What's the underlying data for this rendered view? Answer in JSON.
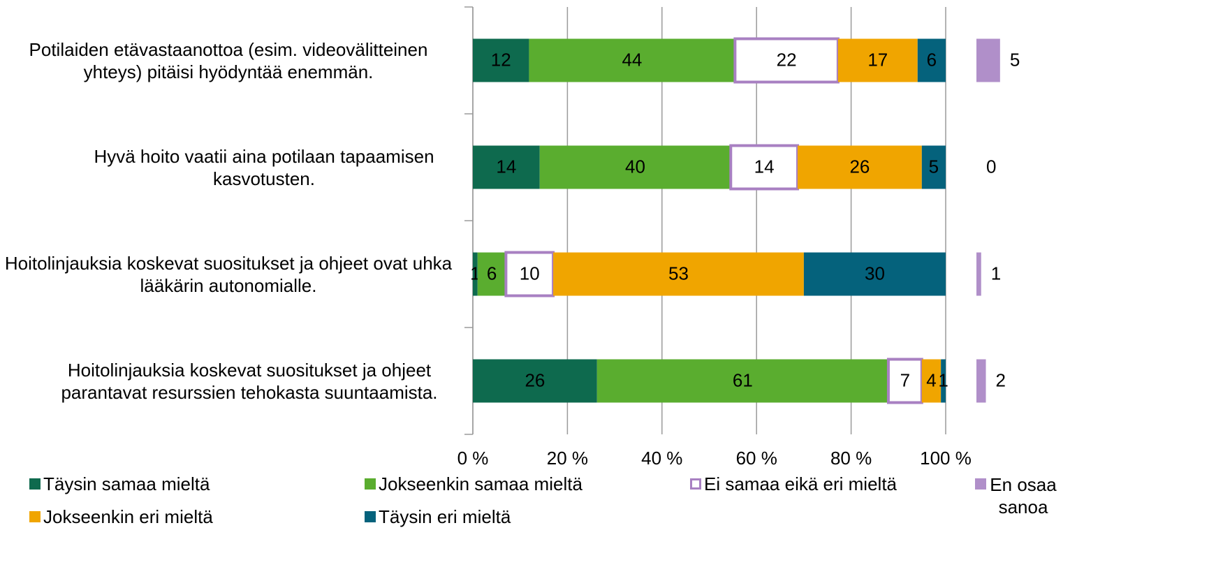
{
  "chart_data": {
    "type": "bar",
    "orientation": "horizontal",
    "stacked": "percent",
    "grid": true,
    "categories": [
      "Potilaiden etävastaanottoa (esim. videovälitteinen yhteys) pitäisi hyödyntää enemmän.",
      "Hyvä hoito vaatii aina potilaan tapaamisen kasvotusten.",
      "Hoitolinjauksia koskevat suositukset ja ohjeet ovat uhka lääkärin autonomialle.",
      "Hoitolinjauksia koskevat suositukset ja ohjeet parantavat resurssien tehokasta suuntaamista."
    ],
    "series": [
      {
        "name": "Täysin samaa mieltä",
        "color": "#0e6a4e",
        "values": [
          12,
          14,
          1,
          26
        ]
      },
      {
        "name": "Jokseenkin samaa mieltä",
        "color": "#5aad2f",
        "values": [
          44,
          40,
          6,
          61
        ]
      },
      {
        "name": "Ei samaa eikä eri mieltä",
        "color": "#a880c2",
        "fill": "#ffffff",
        "values": [
          22,
          14,
          10,
          7
        ]
      },
      {
        "name": "Jokseenkin eri mieltä",
        "color": "#f0a500",
        "values": [
          17,
          26,
          53,
          4
        ]
      },
      {
        "name": "Täysin eri mieltä",
        "color": "#05627c",
        "values": [
          6,
          5,
          30,
          1
        ]
      },
      {
        "name": "En osaa sanoa",
        "color": "#b08fc9",
        "separate": true,
        "values": [
          5,
          0,
          1,
          2
        ]
      }
    ],
    "xlim": [
      0,
      100
    ],
    "xticks": [
      {
        "value": 0,
        "label": "0 %"
      },
      {
        "value": 20,
        "label": "20 %"
      },
      {
        "value": 40,
        "label": "40 %"
      },
      {
        "value": 60,
        "label": "60 %"
      },
      {
        "value": 80,
        "label": "80 %"
      },
      {
        "value": 100,
        "label": "100 %"
      }
    ]
  }
}
